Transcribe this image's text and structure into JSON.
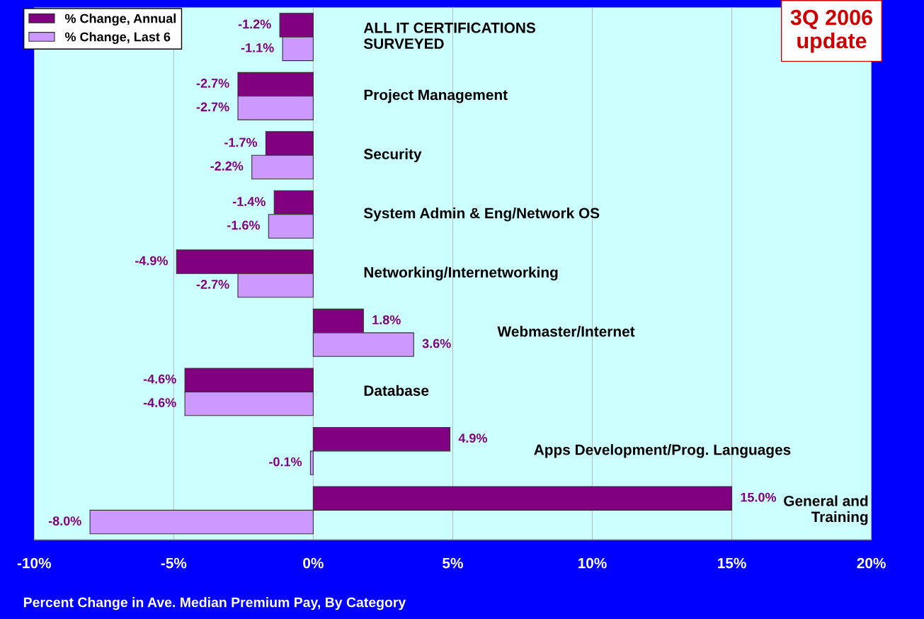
{
  "chart_data": {
    "type": "bar",
    "orientation": "horizontal",
    "categories": [
      "ALL IT CERTIFICATIONS\nSURVEYED",
      "Project Management",
      "Security",
      "System Admin & Eng/Network OS",
      "Networking/Internetworking",
      "Webmaster/Internet",
      "Database",
      "Apps Development/Prog. Languages",
      "General and\nTraining"
    ],
    "series": [
      {
        "name": "% Change, Annual",
        "color": "#800080",
        "values": [
          -1.2,
          -2.7,
          -1.7,
          -1.4,
          -4.9,
          1.8,
          -4.6,
          4.9,
          15.0
        ],
        "value_labels": [
          "-1.2%",
          "-2.7%",
          "-1.7%",
          "-1.4%",
          "-4.9%",
          "1.8%",
          "-4.6%",
          "4.9%",
          "15.0%"
        ]
      },
      {
        "name": "% Change, Last 6",
        "color": "#cc99ff",
        "values": [
          -1.1,
          -2.7,
          -2.2,
          -1.6,
          -2.7,
          3.6,
          -4.6,
          -0.1,
          -8.0
        ],
        "value_labels": [
          "-1.1%",
          "-2.7%",
          "-2.2%",
          "-1.6%",
          "-2.7%",
          "3.6%",
          "-4.6%",
          "-0.1%",
          "-8.0%"
        ]
      }
    ],
    "xlim": [
      -10,
      20
    ],
    "xticks": [
      {
        "value": -10,
        "label": "-10%"
      },
      {
        "value": -5,
        "label": "-5%"
      },
      {
        "value": 0,
        "label": "0%"
      },
      {
        "value": 5,
        "label": "5%"
      },
      {
        "value": 10,
        "label": "10%"
      },
      {
        "value": 15,
        "label": "15%"
      },
      {
        "value": 20,
        "label": "20%"
      }
    ],
    "tick_labels": "x",
    "grid": "x",
    "legend": "top left",
    "annotations": [
      "3Q 2006\nupdate",
      "Percent Change in Ave. Median Premium Pay, By Category"
    ]
  }
}
